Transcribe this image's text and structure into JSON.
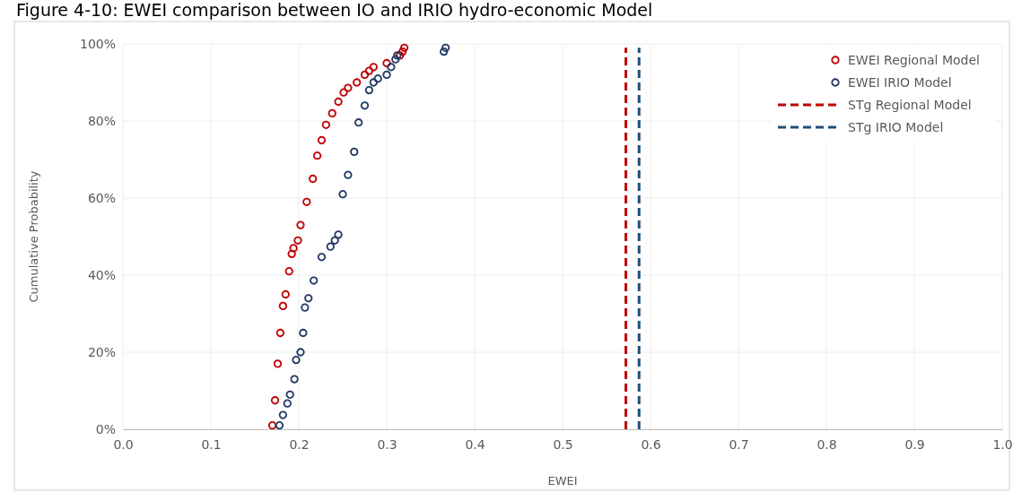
{
  "chart_data": {
    "type": "scatter",
    "title": "Figure 4-10: EWEI comparison between IO and IRIO hydro-economic Model",
    "xlabel": "EWEI",
    "ylabel": "Cumulative Probability",
    "xlim": [
      0,
      1
    ],
    "xticks": [
      {
        "value": 0,
        "label": "0.0"
      },
      0.1,
      0.2,
      0.3,
      0.4,
      0.5,
      0.6,
      0.7,
      0.8,
      0.9,
      {
        "value": 1,
        "label": "1.0"
      }
    ],
    "ylim": [
      0,
      100
    ],
    "yticks": [
      {
        "value": 0,
        "label": "0%"
      },
      {
        "value": 20,
        "label": "20%"
      },
      {
        "value": 40,
        "label": "40%"
      },
      {
        "value": 60,
        "label": "60%"
      },
      {
        "value": 80,
        "label": "80%"
      },
      {
        "value": 100,
        "label": "100%"
      }
    ],
    "grid": true,
    "legend": "top right",
    "marker": "circle",
    "series": [
      {
        "name": "EWEI Regional Model",
        "color": "#c00000",
        "x": [
          0.17,
          0.173,
          0.176,
          0.179,
          0.182,
          0.185,
          0.189,
          0.192,
          0.194,
          0.199,
          0.202,
          0.209,
          0.216,
          0.221,
          0.226,
          0.231,
          0.238,
          0.245,
          0.251,
          0.256,
          0.266,
          0.275,
          0.28,
          0.285,
          0.3,
          0.315,
          0.318,
          0.32
        ],
        "values": [
          1,
          7.5,
          17,
          25,
          32,
          35,
          41,
          45.5,
          47,
          49,
          53,
          59,
          65,
          71,
          75,
          79,
          82,
          85,
          87.4,
          88.6,
          90,
          92,
          93,
          94,
          95,
          97,
          98,
          99
        ]
      },
      {
        "name": "EWEI IRIO Model",
        "color": "#203864",
        "x": [
          0.178,
          0.182,
          0.187,
          0.19,
          0.195,
          0.197,
          0.202,
          0.205,
          0.207,
          0.211,
          0.217,
          0.226,
          0.236,
          0.241,
          0.245,
          0.25,
          0.256,
          0.263,
          0.268,
          0.275,
          0.28,
          0.285,
          0.29,
          0.3,
          0.305,
          0.31,
          0.312,
          0.365,
          0.367
        ],
        "values": [
          1,
          3.7,
          6.7,
          9,
          13,
          18,
          20,
          25,
          31.6,
          34,
          38.6,
          44.7,
          47.4,
          49,
          50.5,
          61,
          66,
          72,
          79.6,
          84,
          88,
          90,
          91,
          92,
          94,
          96,
          97,
          98,
          99
        ]
      },
      {
        "name": "STg Regional Model",
        "type": "line",
        "line_style": "dashed",
        "marker": "none",
        "color": "#c00000",
        "x": [
          0.572,
          0.572
        ],
        "values": [
          0,
          99
        ]
      },
      {
        "name": "STg IRIO Model",
        "type": "line",
        "line_style": "dashed",
        "marker": "none",
        "color": "#1f4e79",
        "x": [
          0.587,
          0.587
        ],
        "values": [
          0,
          99
        ]
      }
    ]
  }
}
